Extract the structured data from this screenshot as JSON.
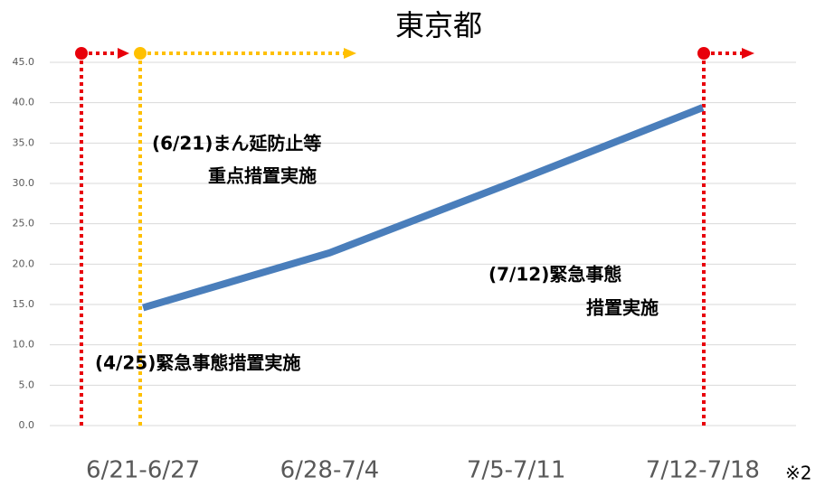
{
  "chart_data": {
    "type": "line",
    "title": "東京都",
    "categories": [
      "6/21-6/27",
      "6/28-7/4",
      "7/5-7/11",
      "7/12-7/18"
    ],
    "series": [
      {
        "name": "東京都",
        "color": "#4a7ebb",
        "values": [
          14.6,
          21.4,
          30.3,
          39.4
        ]
      }
    ],
    "ylim": [
      0,
      45
    ],
    "yticks": [
      {
        "value": 0,
        "label": "0.0"
      },
      {
        "value": 5,
        "label": "5.0"
      },
      {
        "value": 10,
        "label": "10.0"
      },
      {
        "value": 15,
        "label": "15.0"
      },
      {
        "value": 20,
        "label": "20.0"
      },
      {
        "value": 25,
        "label": "25.0"
      },
      {
        "value": 30,
        "label": "30.0"
      },
      {
        "value": 35,
        "label": "35.0"
      },
      {
        "value": 40,
        "label": "40.0"
      },
      {
        "value": 45,
        "label": "45.0"
      }
    ],
    "grid": true,
    "annotations": [
      {
        "lines": [
          "(6/21)まん延防止等",
          "重点措置実施"
        ]
      },
      {
        "lines": [
          "(7/12)緊急事態",
          "措置実施"
        ]
      },
      {
        "lines": [
          "(4/25)緊急事態措置実施"
        ]
      },
      {
        "lines": [
          "※2"
        ]
      }
    ]
  }
}
